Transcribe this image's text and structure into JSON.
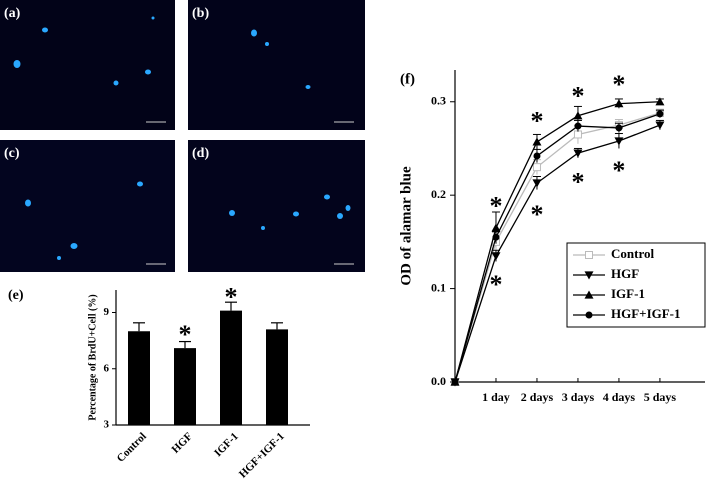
{
  "panels": [
    {
      "label": "(a)"
    },
    {
      "label": "(b)"
    },
    {
      "label": "(c)"
    },
    {
      "label": "(d)"
    }
  ],
  "chart_data": [
    {
      "type": "bar",
      "panel_label": "(e)",
      "ylabel": "Percentage of BrdU+Cell (%)",
      "categories": [
        "Control",
        "HGF",
        "IGF-1",
        "HGF+IGF-1"
      ],
      "values": [
        8.0,
        7.1,
        9.1,
        8.1
      ],
      "errors": [
        0.45,
        0.35,
        0.45,
        0.35
      ],
      "color": "#000000",
      "ylim": [
        3,
        10.2
      ],
      "yticks": [
        3,
        6,
        9
      ],
      "annotations": [
        {
          "text": "*",
          "x": 1,
          "y": 8.0
        },
        {
          "text": "*",
          "x": 2,
          "y": 10.0
        }
      ]
    },
    {
      "type": "line",
      "panel_label": "(f)",
      "ylabel": "OD of alamar blue",
      "x": [
        0,
        1,
        2,
        3,
        4,
        5
      ],
      "xticks": [
        {
          "value": 1,
          "label": "1 day"
        },
        {
          "value": 2,
          "label": "2 days"
        },
        {
          "value": 3,
          "label": "3 days"
        },
        {
          "value": 4,
          "label": "4 days"
        },
        {
          "value": 5,
          "label": "5 days"
        }
      ],
      "xlim": [
        0,
        6.1
      ],
      "ylim": [
        0,
        0.334
      ],
      "yticks": [
        {
          "value": 0,
          "label": "0.0"
        },
        0.1,
        0.2,
        0.3
      ],
      "series": [
        {
          "name": "Control",
          "color": "#bbbbbb",
          "marker": "square-open",
          "values": [
            0,
            0.15,
            0.23,
            0.265,
            0.275,
            0.288
          ],
          "errors": [
            0,
            0.01,
            0.008,
            0.01,
            0.006,
            0.004
          ]
        },
        {
          "name": "HGF",
          "color": "#000000",
          "marker": "triangle-down",
          "values": [
            0,
            0.135,
            0.213,
            0.245,
            0.258,
            0.275
          ],
          "errors": [
            0,
            0.006,
            0.007,
            0.005,
            0.008,
            0.005
          ]
        },
        {
          "name": "IGF-1",
          "color": "#000000",
          "marker": "triangle-up",
          "values": [
            0,
            0.165,
            0.257,
            0.285,
            0.298,
            0.3
          ],
          "errors": [
            0,
            0.017,
            0.008,
            0.01,
            0.005,
            0.003
          ]
        },
        {
          "name": "HGF+IGF-1",
          "color": "#000000",
          "marker": "circle",
          "values": [
            0,
            0.155,
            0.242,
            0.274,
            0.272,
            0.287
          ],
          "errors": [
            0,
            0.006,
            0.007,
            0.006,
            0.005,
            0.004
          ]
        }
      ],
      "annotations": [
        {
          "text": "*",
          "x": 1,
          "y": 0.192
        },
        {
          "text": "*",
          "x": 1,
          "y": 0.108
        },
        {
          "text": "*",
          "x": 2,
          "y": 0.283
        },
        {
          "text": "*",
          "x": 2,
          "y": 0.183
        },
        {
          "text": "*",
          "x": 3,
          "y": 0.31
        },
        {
          "text": "*",
          "x": 3,
          "y": 0.218
        },
        {
          "text": "*",
          "x": 4,
          "y": 0.322
        },
        {
          "text": "*",
          "x": 4,
          "y": 0.23
        }
      ]
    }
  ]
}
